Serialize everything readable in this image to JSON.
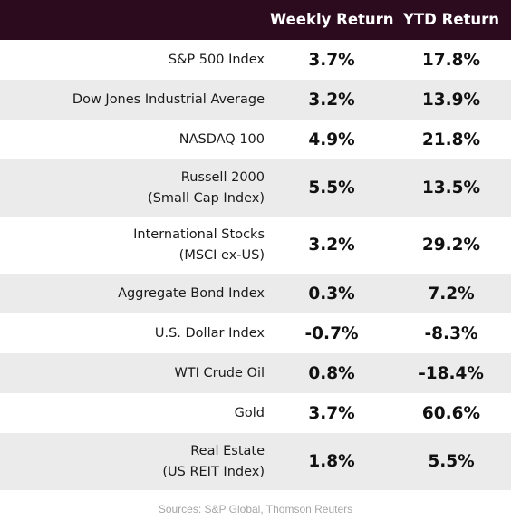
{
  "header": {
    "weekly_label": "Weekly Return",
    "ytd_label": "YTD Return",
    "background_color": "#2d0b1f",
    "text_color": "#ffffff"
  },
  "rows": [
    {
      "label_lines": [
        "S&P 500 Index"
      ],
      "weekly": "3.7%",
      "ytd": "17.8%"
    },
    {
      "label_lines": [
        "Dow Jones Industrial Average"
      ],
      "weekly": "3.2%",
      "ytd": "13.9%"
    },
    {
      "label_lines": [
        "NASDAQ 100"
      ],
      "weekly": "4.9%",
      "ytd": "21.8%"
    },
    {
      "label_lines": [
        "Russell 2000",
        "(Small Cap Index)"
      ],
      "weekly": "5.5%",
      "ytd": "13.5%"
    },
    {
      "label_lines": [
        "International Stocks",
        "(MSCI ex-US)"
      ],
      "weekly": "3.2%",
      "ytd": "29.2%"
    },
    {
      "label_lines": [
        "Aggregate Bond Index"
      ],
      "weekly": "0.3%",
      "ytd": "7.2%"
    },
    {
      "label_lines": [
        "U.S. Dollar Index"
      ],
      "weekly": "-0.7%",
      "ytd": "-8.3%"
    },
    {
      "label_lines": [
        "WTI Crude Oil"
      ],
      "weekly": "0.8%",
      "ytd": "-18.4%"
    },
    {
      "label_lines": [
        "Gold"
      ],
      "weekly": "3.7%",
      "ytd": "60.6%"
    },
    {
      "label_lines": [
        "Real Estate",
        "(US REIT Index)"
      ],
      "weekly": "1.8%",
      "ytd": "5.5%"
    }
  ],
  "row_shade_color": "#ebebeb",
  "footer": {
    "sources": "Sources: S&P Global, Thomson Reuters"
  }
}
